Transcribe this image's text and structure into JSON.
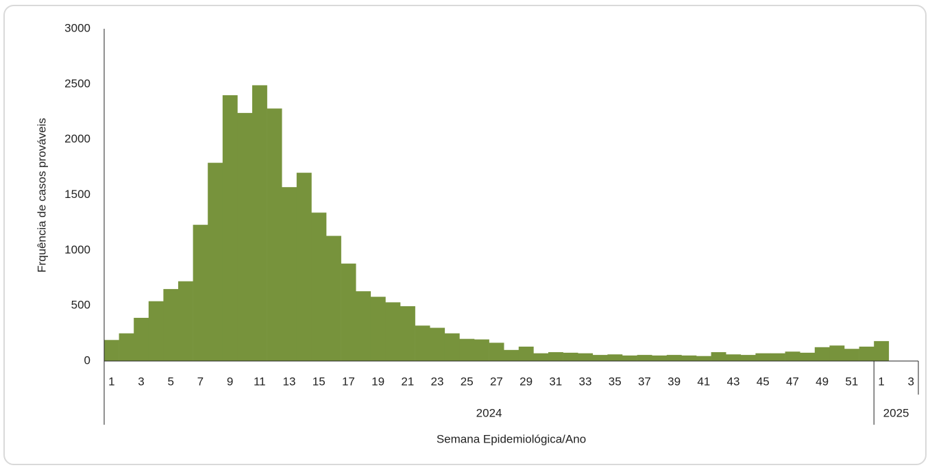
{
  "chart_data": {
    "type": "bar",
    "x_label": "Semana Epidemiológica/Ano",
    "y_label": "Frquência de casos prováveis",
    "groups": [
      {
        "label": "2024",
        "categories": [
          "1",
          null,
          "3",
          null,
          "5",
          null,
          "7",
          null,
          "9",
          null,
          "11",
          null,
          "13",
          null,
          "15",
          null,
          "17",
          null,
          "19",
          null,
          "21",
          null,
          "23",
          null,
          "25",
          null,
          "27",
          null,
          "29",
          null,
          "31",
          null,
          "33",
          null,
          "35",
          null,
          "37",
          null,
          "39",
          null,
          "41",
          null,
          "43",
          null,
          "45",
          null,
          "47",
          null,
          "49",
          null,
          "51",
          null
        ]
      },
      {
        "label": "2025",
        "categories": [
          "1",
          null,
          "3"
        ]
      }
    ],
    "values": [
      190,
      250,
      390,
      540,
      650,
      720,
      1230,
      1790,
      2400,
      2240,
      2490,
      2280,
      1570,
      1700,
      1340,
      1130,
      880,
      630,
      580,
      530,
      495,
      320,
      300,
      250,
      200,
      195,
      165,
      100,
      130,
      70,
      80,
      75,
      70,
      55,
      60,
      50,
      55,
      50,
      55,
      50,
      45,
      80,
      60,
      55,
      70,
      70,
      85,
      75,
      125,
      140,
      110,
      130,
      180,
      null,
      null
    ],
    "color": "#77933c",
    "ylim": [
      0,
      3000
    ],
    "yticks": [
      0,
      500,
      1000,
      1500,
      2000,
      2500,
      3000
    ],
    "grid": false
  }
}
